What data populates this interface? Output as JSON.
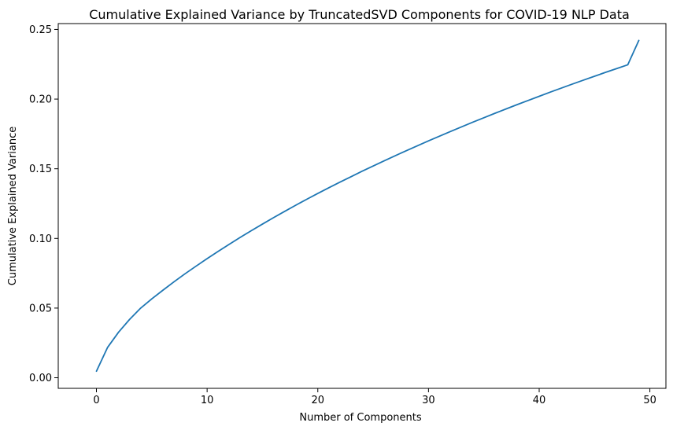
{
  "chart_data": {
    "type": "line",
    "title": "Cumulative Explained Variance by TruncatedSVD Components for COVID-19 NLP Data",
    "xlabel": "Number of Components",
    "ylabel": "Cumulative Explained Variance",
    "xlim": [
      -3.45,
      51.45
    ],
    "ylim": [
      -0.0076,
      0.2542
    ],
    "xticks": [
      0,
      10,
      20,
      30,
      40,
      50
    ],
    "yticks": [
      0.0,
      0.05,
      0.1,
      0.15,
      0.2,
      0.25
    ],
    "xtick_labels": [
      "0",
      "10",
      "20",
      "30",
      "40",
      "50"
    ],
    "ytick_labels": [
      "0.00",
      "0.05",
      "0.10",
      "0.15",
      "0.20",
      "0.25"
    ],
    "grid": false,
    "legend": "none",
    "series": [
      {
        "color": "#1f77b4",
        "x": [
          0,
          1,
          2,
          3,
          4,
          5,
          6,
          7,
          8,
          9,
          10,
          11,
          12,
          13,
          14,
          15,
          16,
          17,
          18,
          19,
          20,
          21,
          22,
          23,
          24,
          25,
          26,
          27,
          28,
          29,
          30,
          31,
          32,
          33,
          34,
          35,
          36,
          37,
          38,
          39,
          40,
          41,
          42,
          43,
          44,
          45,
          46,
          47,
          48,
          49
        ],
        "values": [
          0.0047,
          0.0217,
          0.0327,
          0.0419,
          0.05,
          0.0566,
          0.0628,
          0.0688,
          0.0746,
          0.0801,
          0.0855,
          0.0907,
          0.0958,
          0.1008,
          0.1056,
          0.1103,
          0.1149,
          0.1194,
          0.1238,
          0.1281,
          0.1323,
          0.1364,
          0.1404,
          0.1443,
          0.1482,
          0.152,
          0.1557,
          0.1594,
          0.163,
          0.1665,
          0.17,
          0.1734,
          0.1768,
          0.1801,
          0.1834,
          0.1866,
          0.1898,
          0.1929,
          0.196,
          0.199,
          0.202,
          0.205,
          0.2079,
          0.2108,
          0.2136,
          0.2164,
          0.2192,
          0.2219,
          0.2246,
          0.2421
        ]
      }
    ]
  }
}
